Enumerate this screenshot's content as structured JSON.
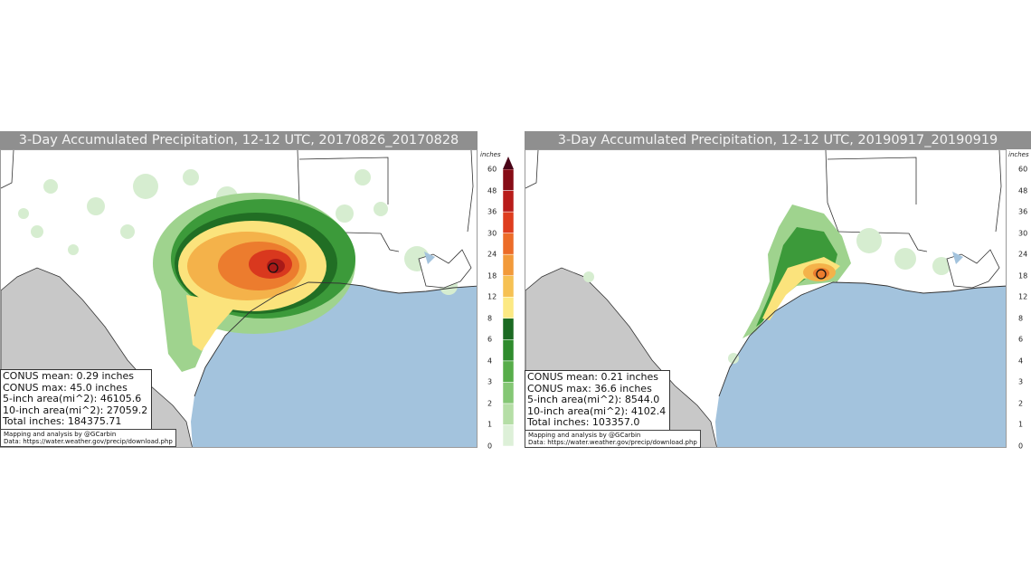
{
  "panels": [
    {
      "title": "3-Day Accumulated Precipitation, 12-12 UTC, 20170826_20170828",
      "stats": [
        "CONUS mean: 0.29 inches",
        "CONUS max: 45.0 inches",
        "5-inch area(mi^2): 46105.6",
        "10-inch area(mi^2): 27059.2",
        "Total inches: 184375.71"
      ],
      "credit": [
        "Mapping and analysis by @GCarbin",
        "Data: https://water.weather.gov/precip/download.php"
      ]
    },
    {
      "title": "3-Day Accumulated Precipitation, 12-12 UTC, 20190917_20190919",
      "stats": [
        "CONUS mean: 0.21 inches",
        "CONUS max: 36.6 inches",
        "5-inch area(mi^2): 8544.0",
        "10-inch area(mi^2): 4102.4",
        "Total inches: 103357.0"
      ],
      "credit": [
        "Mapping and analysis by @GCarbin",
        "Data: https://water.weather.gov/precip/download.php"
      ]
    }
  ],
  "colorbar": {
    "label": "inches",
    "ticks": [
      "0",
      "1",
      "2",
      "3",
      "4",
      "6",
      "8",
      "12",
      "18",
      "24",
      "30",
      "36",
      "48",
      "60"
    ],
    "colors": [
      "#ddf0d8",
      "#b5dea6",
      "#84c774",
      "#57ad4a",
      "#2f8c2d",
      "#1b6a22",
      "#fce983",
      "#f6c153",
      "#f29a3a",
      "#ec6c28",
      "#de3d1e",
      "#b81c1a",
      "#870c16",
      "#4a0417"
    ]
  }
}
